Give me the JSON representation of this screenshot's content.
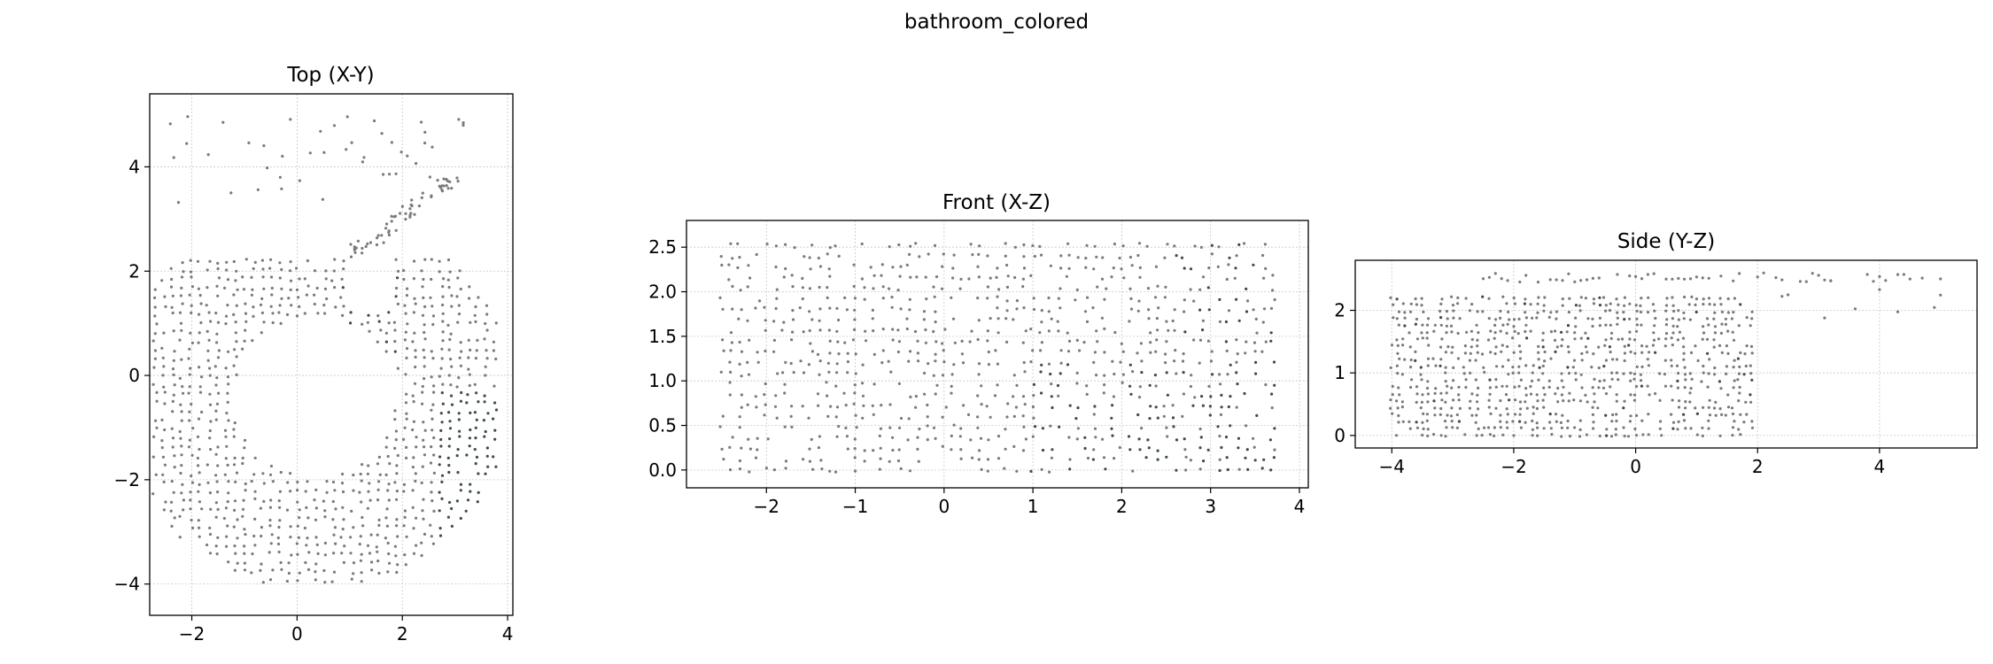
{
  "figure": {
    "suptitle": "bathroom_colored"
  },
  "chart_data": [
    {
      "type": "scatter",
      "title": "Top (X-Y)",
      "xlabel": "",
      "ylabel": "",
      "xlim": [
        -2.8,
        4.1
      ],
      "ylim": [
        -4.6,
        5.4
      ],
      "xticks": [
        -2,
        0,
        2,
        4
      ],
      "xtick_labels": [
        "−2",
        "0",
        "2",
        "4"
      ],
      "yticks": [
        -4,
        -2,
        0,
        2,
        4
      ],
      "ytick_labels": [
        "−4",
        "−2",
        "0",
        "2",
        "4"
      ],
      "grid": true,
      "point_color": "#7a7a7a",
      "accent_color": "#3d4d48",
      "shape": "ring of points centred near (0.3, -0.3), inner radius ~1.5, outer ~3.7, plus sparse points near y=4"
    },
    {
      "type": "scatter",
      "title": "Front (X-Z)",
      "xlabel": "",
      "ylabel": "",
      "xlim": [
        -2.9,
        4.1
      ],
      "ylim": [
        -0.2,
        2.8
      ],
      "xticks": [
        -2,
        -1,
        0,
        1,
        2,
        3,
        4
      ],
      "xtick_labels": [
        "−2",
        "−1",
        "0",
        "1",
        "2",
        "3",
        "4"
      ],
      "yticks": [
        0.0,
        0.5,
        1.0,
        1.5,
        2.0,
        2.5
      ],
      "ytick_labels": [
        "0.0",
        "0.5",
        "1.0",
        "1.5",
        "2.0",
        "2.5"
      ],
      "grid": true,
      "point_color": "#7a7a7a",
      "accent_color": "#3d4d48",
      "shape": "grid of points spanning x -2.5 to 3.8, z 0 to 2.6"
    },
    {
      "type": "scatter",
      "title": "Side (Y-Z)",
      "xlabel": "",
      "ylabel": "",
      "xlim": [
        -4.6,
        5.6
      ],
      "ylim": [
        -0.2,
        2.8
      ],
      "xticks": [
        -4,
        -2,
        0,
        2,
        4
      ],
      "xtick_labels": [
        "−4",
        "−2",
        "0",
        "2",
        "4"
      ],
      "yticks": [
        0,
        1,
        2
      ],
      "ytick_labels": [
        "0",
        "1",
        "2"
      ],
      "grid": true,
      "point_color": "#7a7a7a",
      "accent_color": "#3d4d48",
      "shape": "dense block y -4 to 2, z 0 to 2.3; upper band to y ~5 near z 2.5"
    }
  ]
}
